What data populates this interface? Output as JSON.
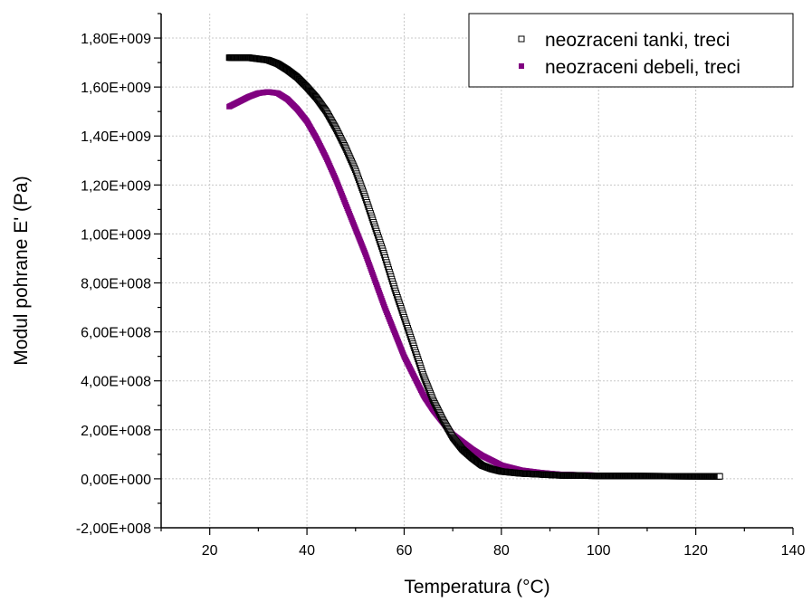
{
  "chart_data": {
    "type": "scatter",
    "xlabel": "Temperatura (°C)",
    "ylabel": "Modul pohrane E' (Pa)",
    "xlim": [
      10,
      140
    ],
    "ylim": [
      -200000000,
      1900000000
    ],
    "x_ticks": [
      20,
      40,
      60,
      80,
      100,
      120,
      140
    ],
    "x_tick_labels": [
      "20",
      "40",
      "60",
      "80",
      "100",
      "120",
      "140"
    ],
    "y_ticks": [
      -200000000,
      0,
      200000000,
      400000000,
      600000000,
      800000000,
      1000000000,
      1200000000,
      1400000000,
      1600000000,
      1800000000
    ],
    "y_tick_labels": [
      "-2,00E+008",
      "0,00E+000",
      "2,00E+008",
      "4,00E+008",
      "6,00E+008",
      "8,00E+008",
      "1,00E+009",
      "1,20E+009",
      "1,40E+009",
      "1,60E+009",
      "1,80E+009"
    ],
    "grid": true,
    "legend_position": "top-right",
    "series": [
      {
        "name": "neozraceni tanki, treci",
        "marker": "hollow-square",
        "color": "#000000",
        "x": [
          24,
          26,
          28,
          30,
          32,
          34,
          36,
          38,
          40,
          42,
          44,
          46,
          48,
          50,
          52,
          54,
          56,
          58,
          60,
          62,
          64,
          66,
          68,
          70,
          72,
          74,
          76,
          78,
          80,
          84,
          88,
          92,
          100,
          110,
          125
        ],
        "y": [
          1720000000,
          1720000000,
          1720000000,
          1715000000,
          1710000000,
          1695000000,
          1670000000,
          1640000000,
          1600000000,
          1555000000,
          1500000000,
          1430000000,
          1350000000,
          1260000000,
          1150000000,
          1030000000,
          910000000,
          780000000,
          660000000,
          540000000,
          420000000,
          320000000,
          240000000,
          170000000,
          120000000,
          85000000,
          55000000,
          40000000,
          30000000,
          22000000,
          18000000,
          14000000,
          12000000,
          11000000,
          10000000
        ]
      },
      {
        "name": "neozraceni debeli, treci",
        "marker": "filled-square",
        "color": "#800080",
        "x": [
          24,
          26,
          28,
          30,
          32,
          34,
          36,
          38,
          40,
          42,
          44,
          46,
          48,
          50,
          52,
          54,
          56,
          58,
          60,
          62,
          64,
          66,
          68,
          70,
          72,
          74,
          76,
          78,
          80,
          84,
          88,
          92,
          100,
          110,
          125
        ],
        "y": [
          1520000000,
          1540000000,
          1560000000,
          1575000000,
          1580000000,
          1575000000,
          1550000000,
          1510000000,
          1460000000,
          1390000000,
          1310000000,
          1220000000,
          1120000000,
          1020000000,
          920000000,
          810000000,
          700000000,
          600000000,
          500000000,
          420000000,
          340000000,
          280000000,
          230000000,
          180000000,
          150000000,
          120000000,
          95000000,
          75000000,
          55000000,
          35000000,
          25000000,
          18000000,
          14000000,
          12000000,
          10000000
        ]
      }
    ]
  }
}
